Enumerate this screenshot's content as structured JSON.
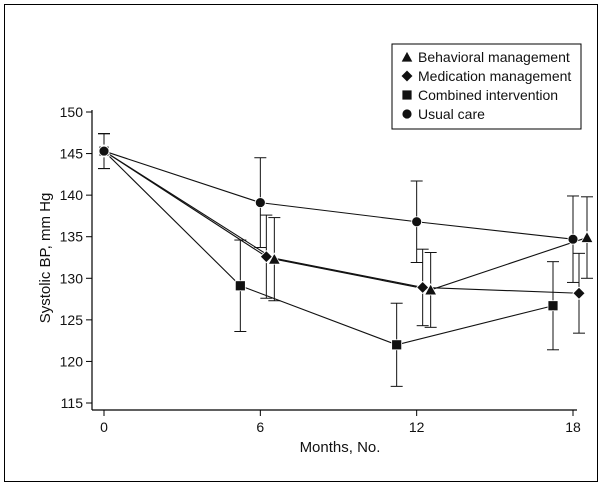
{
  "chart_data": {
    "type": "line",
    "xlabel": "Months, No.",
    "ylabel": "Systolic BP, mm Hg",
    "xlim": [
      0,
      18
    ],
    "ylim": [
      115,
      150
    ],
    "xticks": [
      0,
      6,
      12,
      18
    ],
    "yticks": [
      115,
      120,
      125,
      130,
      135,
      140,
      145,
      150
    ],
    "grid": false,
    "legend_position": "top-right",
    "series": [
      {
        "name": "Behavioral management",
        "marker": "triangle",
        "x": [
          0,
          6,
          12,
          18
        ],
        "values": [
          145.3,
          132.3,
          128.6,
          134.9
        ],
        "error": [
          2.1,
          5.0,
          4.5,
          4.9
        ]
      },
      {
        "name": "Medication management",
        "marker": "diamond",
        "x": [
          0,
          6,
          12,
          18
        ],
        "values": [
          145.3,
          132.6,
          128.9,
          128.2
        ],
        "error": [
          2.1,
          5.0,
          4.6,
          4.8
        ]
      },
      {
        "name": "Combined intervention",
        "marker": "square",
        "x": [
          0,
          6,
          12,
          18
        ],
        "values": [
          145.3,
          129.1,
          122.0,
          126.7
        ],
        "error": [
          2.1,
          5.5,
          5.0,
          5.3
        ]
      },
      {
        "name": "Usual care",
        "marker": "circle",
        "x": [
          0,
          6,
          12,
          18
        ],
        "values": [
          145.3,
          139.1,
          136.8,
          134.7
        ],
        "error": [
          2.1,
          5.4,
          4.9,
          5.2
        ]
      }
    ]
  }
}
